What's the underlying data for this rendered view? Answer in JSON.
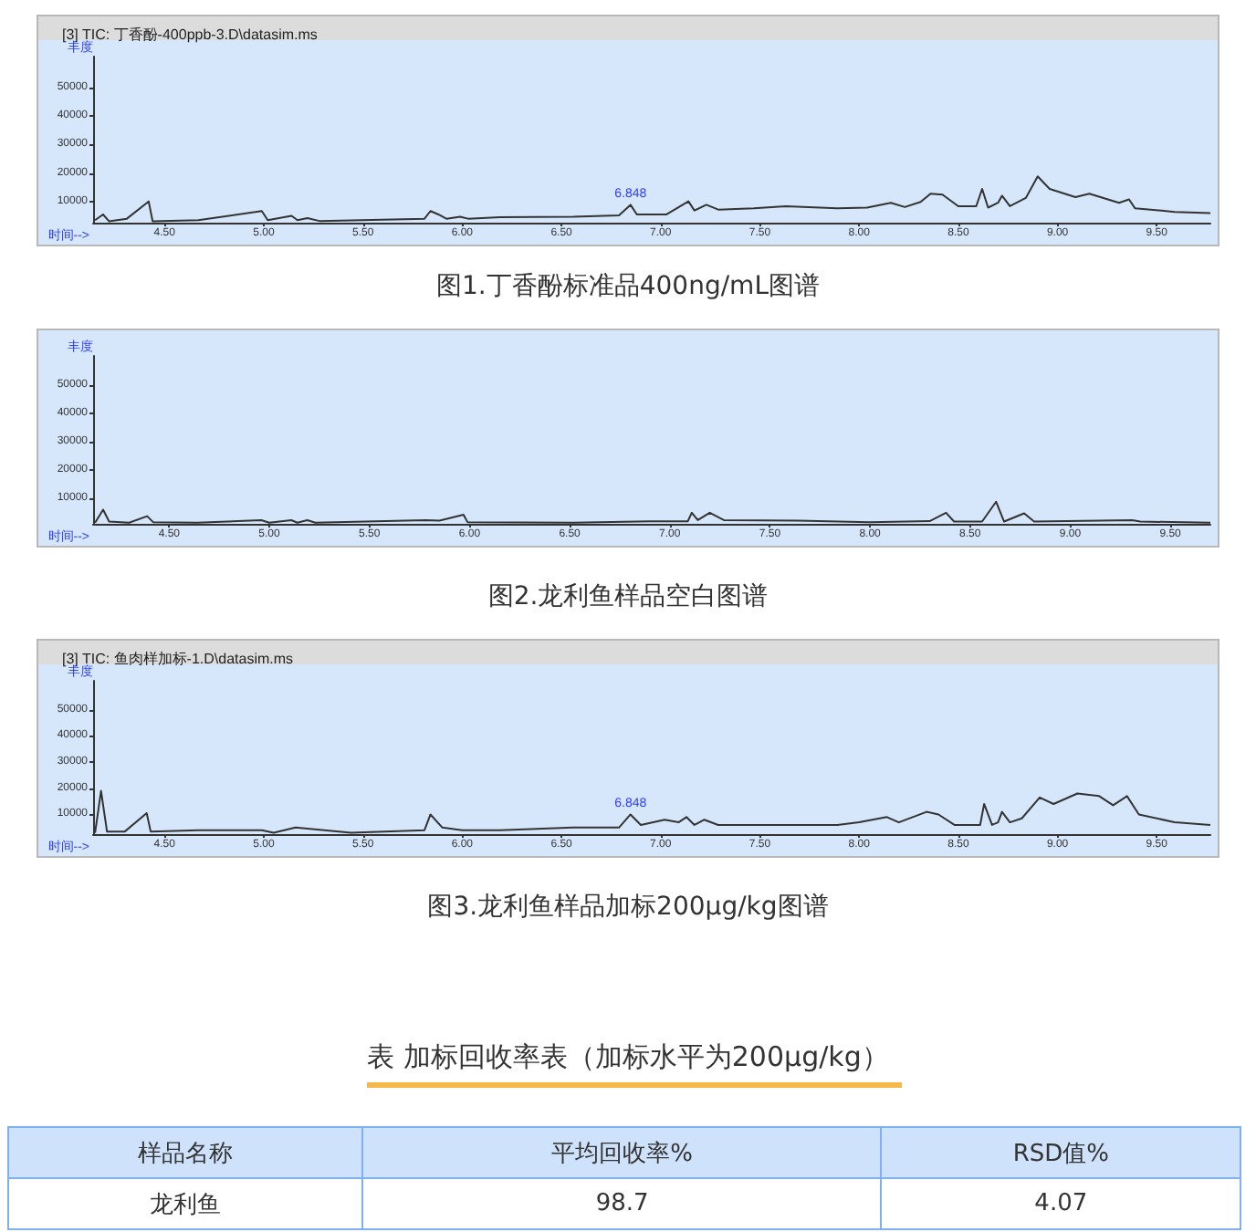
{
  "chart_data": [
    {
      "type": "line",
      "title": "[3] TIC: 丁香酚-400ppb-3.D\\datasim.ms",
      "xlabel": "时间-->",
      "ylabel": "丰度",
      "xlim": [
        4.14,
        9.77
      ],
      "ylim": [
        2500,
        61000
      ],
      "xticks": [
        {
          "value": 4.5,
          "label": "4.50"
        },
        {
          "value": 5,
          "label": "5.00"
        },
        {
          "value": 5.5,
          "label": "5.50"
        },
        {
          "value": 6,
          "label": "6.00"
        },
        {
          "value": 6.5,
          "label": "6.50"
        },
        {
          "value": 7,
          "label": "7.00"
        },
        {
          "value": 7.5,
          "label": "7.50"
        },
        {
          "value": 8,
          "label": "8.00"
        },
        {
          "value": 8.5,
          "label": "8.50"
        },
        {
          "value": 9,
          "label": "9.00"
        },
        {
          "value": 9.5,
          "label": "9.50"
        }
      ],
      "yticks": [
        10000,
        20000,
        30000,
        40000,
        50000
      ],
      "grid": false,
      "marker": "none",
      "series": [
        {
          "color": "#333333",
          "x": [
            4.15,
            4.19,
            4.22,
            4.31,
            4.42,
            4.44,
            4.67,
            4.99,
            5.02,
            5.14,
            5.17,
            5.22,
            5.28,
            5.81,
            5.84,
            5.88,
            5.92,
            5.99,
            6.03,
            6.19,
            6.56,
            6.79,
            6.848,
            6.88,
            7.03,
            7.14,
            7.17,
            7.23,
            7.29,
            7.47,
            7.63,
            7.89,
            8.04,
            8.16,
            8.23,
            8.31,
            8.36,
            8.42,
            8.5,
            8.59,
            8.62,
            8.65,
            8.7,
            8.72,
            8.76,
            8.84,
            8.9,
            8.96,
            9.09,
            9.16,
            9.31,
            9.36,
            9.39,
            9.59,
            9.77
          ],
          "values": [
            3400,
            5400,
            3000,
            3900,
            10000,
            3000,
            3400,
            6600,
            3400,
            4900,
            3400,
            4100,
            3100,
            3900,
            6600,
            5400,
            3900,
            4600,
            3900,
            4400,
            4600,
            5100,
            8800,
            5400,
            5400,
            10000,
            6800,
            8800,
            7100,
            7600,
            8300,
            7600,
            7800,
            9500,
            8000,
            9800,
            12700,
            12400,
            8300,
            8300,
            14400,
            7800,
            9500,
            12000,
            8300,
            11200,
            18800,
            14400,
            11500,
            12700,
            9500,
            10700,
            7600,
            6300,
            5900
          ]
        }
      ],
      "annotations": [
        {
          "text": "6.848",
          "x": 6.848,
          "y": 8800
        },
        "图1.丁香酚标准品400ng/mL图谱"
      ]
    },
    {
      "type": "line",
      "xlabel": "时间-->",
      "ylabel": "丰度",
      "xlim": [
        4.12,
        9.7
      ],
      "ylim": [
        1000,
        60200
      ],
      "xticks": [
        {
          "value": 4.5,
          "label": "4.50"
        },
        {
          "value": 5,
          "label": "5.00"
        },
        {
          "value": 5.5,
          "label": "5.50"
        },
        {
          "value": 6,
          "label": "6.00"
        },
        {
          "value": 6.5,
          "label": "6.50"
        },
        {
          "value": 7,
          "label": "7.00"
        },
        {
          "value": 7.5,
          "label": "7.50"
        },
        {
          "value": 8,
          "label": "8.00"
        },
        {
          "value": 8.5,
          "label": "8.50"
        },
        {
          "value": 9,
          "label": "9.00"
        },
        {
          "value": 9.5,
          "label": "9.50"
        }
      ],
      "yticks": [
        10000,
        20000,
        30000,
        40000,
        50000
      ],
      "grid": false,
      "marker": "none",
      "series": [
        {
          "color": "#333333",
          "x": [
            4.13,
            4.17,
            4.2,
            4.3,
            4.39,
            4.42,
            4.64,
            4.96,
            5.0,
            5.11,
            5.14,
            5.19,
            5.23,
            5.78,
            5.85,
            5.97,
            5.99,
            6.52,
            6.9,
            7.09,
            7.11,
            7.14,
            7.2,
            7.27,
            7.64,
            8.0,
            8.3,
            8.38,
            8.42,
            8.56,
            8.63,
            8.67,
            8.77,
            8.82,
            9.31,
            9.35,
            9.7
          ],
          "values": [
            1400,
            6000,
            1800,
            1400,
            3700,
            1600,
            1400,
            2300,
            1400,
            2300,
            1400,
            2300,
            1400,
            2300,
            2100,
            4200,
            1600,
            1400,
            1900,
            1900,
            4900,
            2300,
            4900,
            2300,
            2100,
            1600,
            2000,
            4900,
            1800,
            1800,
            8800,
            1800,
            4700,
            1800,
            2300,
            1800,
            1400
          ]
        }
      ],
      "annotations": [
        "图2.龙利鱼样品空白图谱"
      ]
    },
    {
      "type": "line",
      "title": "[3] TIC: 鱼肉样加标-1.D\\datasim.ms",
      "xlabel": "时间-->",
      "ylabel": "丰度",
      "xlim": [
        4.14,
        9.77
      ],
      "ylim": [
        2500,
        61000
      ],
      "xticks": [
        {
          "value": 4.5,
          "label": "4.50"
        },
        {
          "value": 5,
          "label": "5.00"
        },
        {
          "value": 5.5,
          "label": "5.50"
        },
        {
          "value": 6,
          "label": "6.00"
        },
        {
          "value": 6.5,
          "label": "6.50"
        },
        {
          "value": 7,
          "label": "7.00"
        },
        {
          "value": 7.5,
          "label": "7.50"
        },
        {
          "value": 8,
          "label": "8.00"
        },
        {
          "value": 8.5,
          "label": "8.50"
        },
        {
          "value": 9,
          "label": "9.00"
        },
        {
          "value": 9.5,
          "label": "9.50"
        }
      ],
      "yticks": [
        10000,
        20000,
        30000,
        40000,
        50000
      ],
      "grid": false,
      "marker": "none",
      "series": [
        {
          "color": "#333333",
          "x": [
            4.15,
            4.18,
            4.21,
            4.3,
            4.41,
            4.43,
            4.67,
            4.99,
            5.05,
            5.16,
            5.44,
            5.81,
            5.84,
            5.9,
            6.0,
            6.19,
            6.56,
            6.79,
            6.848,
            6.9,
            7.02,
            7.09,
            7.13,
            7.17,
            7.22,
            7.29,
            7.63,
            7.89,
            8.0,
            8.14,
            8.2,
            8.34,
            8.4,
            8.48,
            8.61,
            8.63,
            8.67,
            8.7,
            8.72,
            8.76,
            8.82,
            8.91,
            8.98,
            9.1,
            9.21,
            9.28,
            9.35,
            9.41,
            9.59,
            9.77
          ],
          "values": [
            3000,
            19000,
            3500,
            3500,
            10500,
            3500,
            4000,
            4000,
            3000,
            5000,
            3000,
            4000,
            10000,
            5000,
            4000,
            4000,
            5000,
            5000,
            10000,
            6000,
            8000,
            7000,
            9000,
            6000,
            8000,
            6000,
            6000,
            6000,
            7000,
            9000,
            7000,
            11000,
            10000,
            6000,
            6000,
            14000,
            6000,
            7000,
            11000,
            7000,
            8500,
            16500,
            14000,
            18000,
            17000,
            13500,
            17000,
            10000,
            7000,
            6000
          ]
        }
      ],
      "annotations": [
        {
          "text": "6.848",
          "x": 6.848,
          "y": 10000
        },
        "图3.龙利鱼样品加标200μg/kg图谱"
      ]
    },
    {
      "type": "other",
      "title": "表 加标回收率表（加标水平为200μg/kg）",
      "annotations": [
        "样品名称",
        "平均回收率%",
        "RSD值%",
        "龙利鱼",
        "98.7",
        "4.07"
      ]
    }
  ]
}
